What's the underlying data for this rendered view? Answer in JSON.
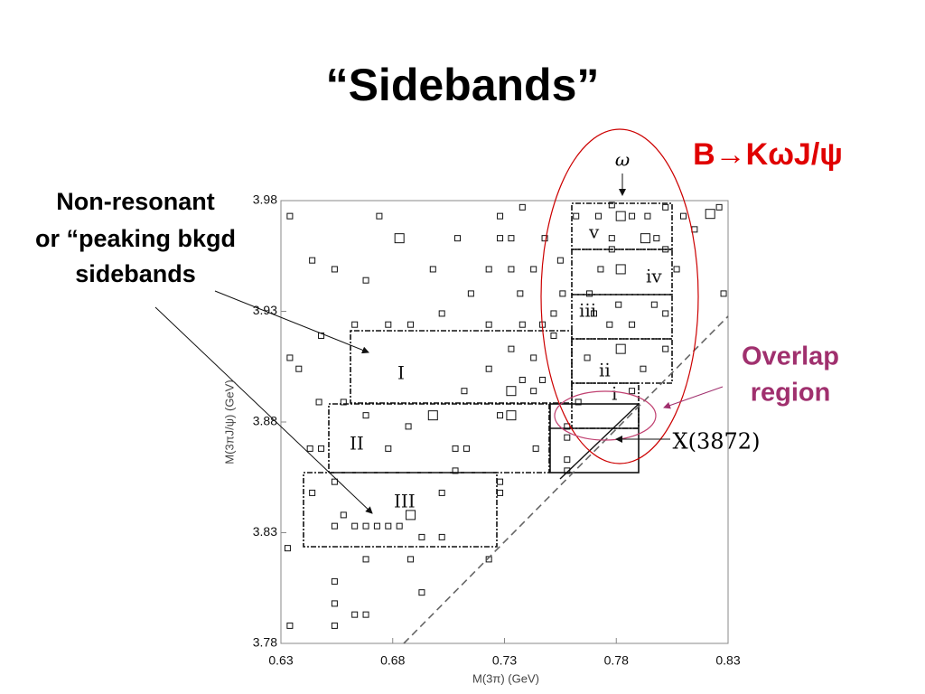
{
  "title": "“Sidebands”",
  "chart_data": {
    "type": "scatter",
    "xlabel": "M(3π) (GeV)",
    "ylabel": "M(3πJ/ψ) (GeV)",
    "xlim": [
      0.63,
      0.83
    ],
    "ylim": [
      3.78,
      3.98
    ],
    "xticks": [
      0.63,
      0.68,
      0.73,
      0.78,
      0.83
    ],
    "yticks": [
      3.78,
      3.83,
      3.88,
      3.93,
      3.98
    ],
    "series": [
      {
        "x": [
          0.634,
          0.674,
          0.728,
          0.738,
          0.762,
          0.772,
          0.778,
          0.782,
          0.787,
          0.794,
          0.802,
          0.81,
          0.822,
          0.826,
          0.683,
          0.709,
          0.728,
          0.733,
          0.748,
          0.778,
          0.793,
          0.798,
          0.815,
          0.644,
          0.755,
          0.778,
          0.802,
          0.654,
          0.698,
          0.723,
          0.733,
          0.743,
          0.773,
          0.782,
          0.807,
          0.668,
          0.737,
          0.828,
          0.715,
          0.756,
          0.768,
          0.781,
          0.797,
          0.702,
          0.752,
          0.77,
          0.802,
          0.663,
          0.678,
          0.688,
          0.723,
          0.738,
          0.747,
          0.777,
          0.787,
          0.648,
          0.752,
          0.782,
          0.802,
          0.733,
          0.634,
          0.743,
          0.767,
          0.792,
          0.638,
          0.723,
          0.738,
          0.747,
          0.712,
          0.733,
          0.743,
          0.787,
          0.647,
          0.658,
          0.763,
          0.668,
          0.698,
          0.728,
          0.733,
          0.687,
          0.758,
          0.758,
          0.643,
          0.648,
          0.678,
          0.708,
          0.713,
          0.744,
          0.758,
          0.708,
          0.758,
          0.654,
          0.728,
          0.644,
          0.728,
          0.702,
          0.658,
          0.688,
          0.654,
          0.663,
          0.668,
          0.673,
          0.678,
          0.683,
          0.693,
          0.702,
          0.633,
          0.668,
          0.688,
          0.723,
          0.654,
          0.693,
          0.654,
          0.663,
          0.668,
          0.634,
          0.654
        ],
        "values": [
          3.973,
          3.973,
          3.973,
          3.977,
          3.973,
          3.973,
          3.978,
          3.973,
          3.973,
          3.973,
          3.977,
          3.973,
          3.974,
          3.977,
          3.963,
          3.963,
          3.963,
          3.963,
          3.963,
          3.963,
          3.963,
          3.963,
          3.967,
          3.953,
          3.953,
          3.958,
          3.958,
          3.949,
          3.949,
          3.949,
          3.949,
          3.949,
          3.949,
          3.949,
          3.949,
          3.944,
          3.938,
          3.938,
          3.938,
          3.938,
          3.938,
          3.933,
          3.933,
          3.929,
          3.929,
          3.929,
          3.929,
          3.924,
          3.924,
          3.924,
          3.924,
          3.924,
          3.924,
          3.924,
          3.924,
          3.919,
          3.919,
          3.913,
          3.913,
          3.913,
          3.909,
          3.909,
          3.909,
          3.904,
          3.904,
          3.904,
          3.899,
          3.899,
          3.894,
          3.894,
          3.894,
          3.894,
          3.889,
          3.889,
          3.889,
          3.883,
          3.883,
          3.883,
          3.883,
          3.878,
          3.878,
          3.873,
          3.868,
          3.868,
          3.868,
          3.868,
          3.868,
          3.868,
          3.863,
          3.858,
          3.858,
          3.853,
          3.853,
          3.848,
          3.848,
          3.848,
          3.838,
          3.838,
          3.833,
          3.833,
          3.833,
          3.833,
          3.833,
          3.833,
          3.828,
          3.828,
          3.823,
          3.818,
          3.818,
          3.818,
          3.808,
          3.803,
          3.798,
          3.793,
          3.793,
          3.788,
          3.788
        ],
        "sizes": [
          1,
          1,
          1,
          1,
          1,
          1,
          1,
          2,
          1,
          1,
          1,
          1,
          2,
          1,
          2,
          1,
          1,
          1,
          1,
          1,
          2,
          1,
          1,
          1,
          1,
          1,
          1,
          1,
          1,
          1,
          1,
          1,
          1,
          2,
          1,
          1,
          1,
          1,
          1,
          1,
          1,
          1,
          1,
          1,
          1,
          1,
          1,
          1,
          1,
          1,
          1,
          1,
          1,
          1,
          1,
          1,
          1,
          2,
          1,
          1,
          1,
          1,
          1,
          1,
          1,
          1,
          1,
          1,
          1,
          2,
          1,
          1,
          1,
          1,
          1,
          1,
          2,
          1,
          2,
          1,
          1,
          1,
          1,
          1,
          1,
          1,
          1,
          1,
          1,
          1,
          1,
          1,
          1,
          1,
          1,
          1,
          1,
          2,
          1,
          1,
          1,
          1,
          1,
          1,
          1,
          1,
          1,
          1,
          1,
          1,
          1,
          1,
          1,
          1,
          1,
          1,
          1
        ]
      }
    ],
    "regions": [
      "I",
      "II",
      "III",
      "i",
      "ii",
      "iii",
      "iv",
      "v"
    ],
    "annotations": {
      "decay": "B→KωJ/ψ",
      "nonresonant": [
        "Non-resonant",
        "or “peaking bkgd",
        "sidebands"
      ],
      "overlap": [
        "Overlap",
        "region"
      ],
      "x3872": "X(3872)",
      "omega": "ω"
    }
  }
}
